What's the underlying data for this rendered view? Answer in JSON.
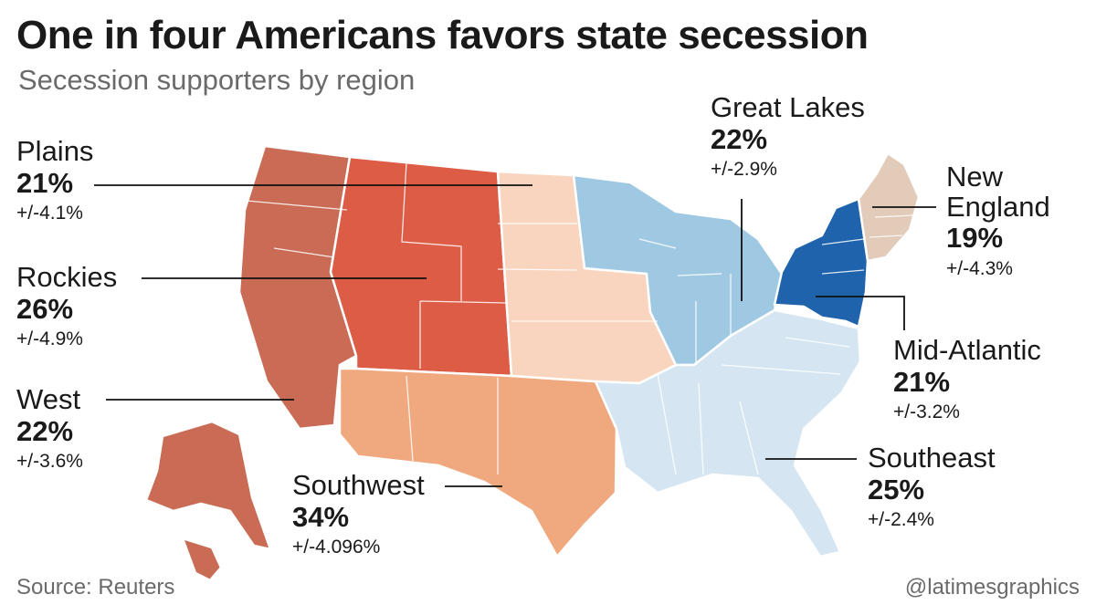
{
  "title": "One in four Americans favors state secession",
  "subtitle": "Secession supporters by region",
  "source": "Source: Reuters",
  "credit": "@latimesgraphics",
  "colors": {
    "west": "#c96b55",
    "rockies": "#dc5c45",
    "southwest": "#f0a87e",
    "plains": "#f9d5c0",
    "great_lakes": "#9fc9e3",
    "mid_atlantic": "#1f63ad",
    "new_england": "#e3cbba",
    "southeast": "#d5e6f2"
  },
  "regions": [
    {
      "id": "plains",
      "name": "Plains",
      "pct": "21%",
      "moe": "+/-4.1%",
      "value": 21,
      "margin": 4.1
    },
    {
      "id": "rockies",
      "name": "Rockies",
      "pct": "26%",
      "moe": "+/-4.9%",
      "value": 26,
      "margin": 4.9
    },
    {
      "id": "west",
      "name": "West",
      "pct": "22%",
      "moe": "+/-3.6%",
      "value": 22,
      "margin": 3.6
    },
    {
      "id": "southwest",
      "name": "Southwest",
      "pct": "34%",
      "moe": "+/-4.096%",
      "value": 34,
      "margin": 4.096
    },
    {
      "id": "great_lakes",
      "name": "Great Lakes",
      "pct": "22%",
      "moe": "+/-2.9%",
      "value": 22,
      "margin": 2.9
    },
    {
      "id": "new_england",
      "name_line1": "New",
      "name_line2": "England",
      "pct": "19%",
      "moe": "+/-4.3%",
      "value": 19,
      "margin": 4.3
    },
    {
      "id": "mid_atlantic",
      "name": "Mid-Atlantic",
      "pct": "21%",
      "moe": "+/-3.2%",
      "value": 21,
      "margin": 3.2
    },
    {
      "id": "southeast",
      "name": "Southeast",
      "pct": "25%",
      "moe": "+/-2.4%",
      "value": 25,
      "margin": 2.4
    }
  ]
}
